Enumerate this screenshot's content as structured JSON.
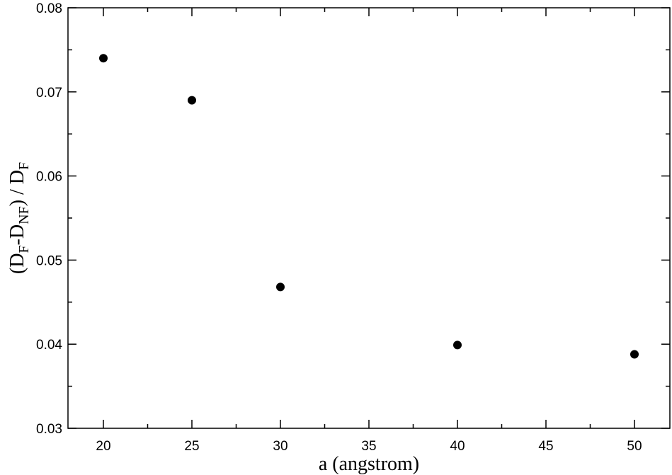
{
  "chart_data": {
    "type": "scatter",
    "title": "",
    "xlabel": "a (angstrom)",
    "ylabel": {
      "parts": [
        {
          "text": "(D",
          "sub": false
        },
        {
          "text": "F",
          "sub": true
        },
        {
          "text": "-D",
          "sub": false
        },
        {
          "text": "NF",
          "sub": true
        },
        {
          "text": ") / D",
          "sub": false
        },
        {
          "text": "F",
          "sub": true
        }
      ]
    },
    "xlim": [
      18,
      52
    ],
    "ylim": [
      0.03,
      0.08
    ],
    "xticks": [
      20,
      25,
      30,
      35,
      40,
      45,
      50
    ],
    "xtick_labels": [
      "20",
      "25",
      "30",
      "35",
      "40",
      "45",
      "50"
    ],
    "yticks": [
      0.03,
      0.04,
      0.05,
      0.06,
      0.07,
      0.08
    ],
    "ytick_labels": [
      "0.03",
      "0.04",
      "0.05",
      "0.06",
      "0.07",
      "0.08"
    ],
    "grid": false,
    "marker": "filled-circle",
    "marker_color": "#000000",
    "points": [
      {
        "x": 20,
        "y": 0.074
      },
      {
        "x": 25,
        "y": 0.069
      },
      {
        "x": 30,
        "y": 0.0468
      },
      {
        "x": 40,
        "y": 0.0399
      },
      {
        "x": 50,
        "y": 0.0388
      }
    ]
  }
}
